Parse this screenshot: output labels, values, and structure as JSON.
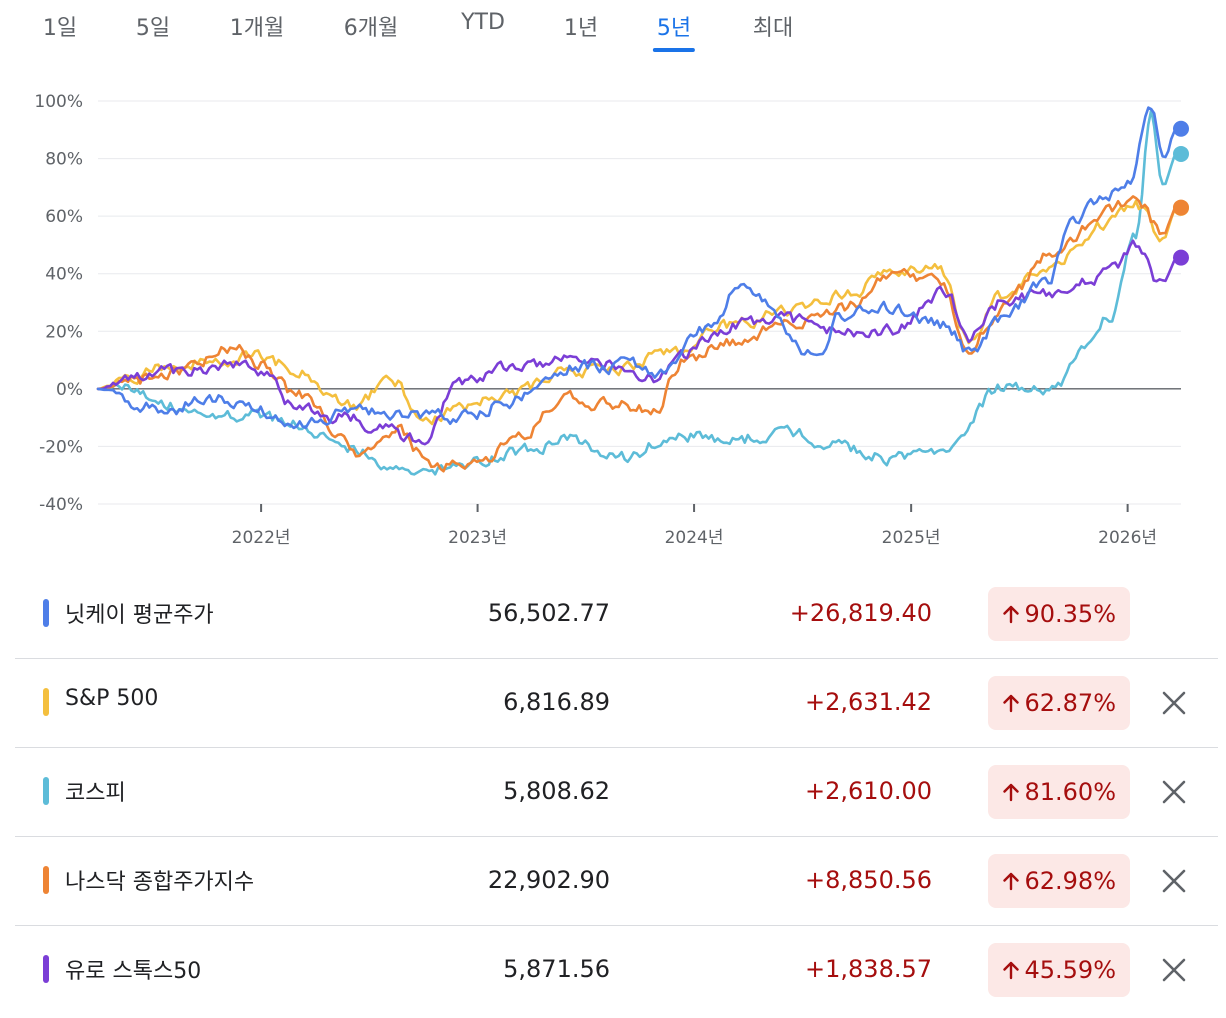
{
  "tabs": [
    {
      "label": "1일",
      "active": false
    },
    {
      "label": "5일",
      "active": false
    },
    {
      "label": "1개월",
      "active": false
    },
    {
      "label": "6개월",
      "active": false
    },
    {
      "label": "YTD",
      "active": false
    },
    {
      "label": "1년",
      "active": false
    },
    {
      "label": "5년",
      "active": true
    },
    {
      "label": "최대",
      "active": false
    }
  ],
  "colors": {
    "nikkei": "#4e7ee8",
    "sp500": "#f4bf3e",
    "kospi": "#5dbcd8",
    "nasdaq": "#ee8434",
    "stoxx": "#7b3ed6",
    "positive": "#a50e0e",
    "positive_bg": "#fce8e6"
  },
  "chart_data": {
    "type": "line",
    "x_unit": "date",
    "x_range": [
      "2021-04-01",
      "2026-04-01"
    ],
    "ylim": [
      -40,
      100
    ],
    "y_ticks": [
      -40,
      -20,
      0,
      20,
      40,
      60,
      80,
      100
    ],
    "y_tick_labels": [
      "-40%",
      "-20%",
      "0%",
      "20%",
      "40%",
      "60%",
      "80%",
      "100%"
    ],
    "x_ticks": [
      "2022-01-01",
      "2023-01-01",
      "2024-01-01",
      "2025-01-01",
      "2026-01-01"
    ],
    "x_tick_labels": [
      "2022년",
      "2023년",
      "2024년",
      "2025년",
      "2026년"
    ],
    "baseline": 0,
    "grid": true,
    "series": [
      {
        "key": "kospi",
        "name": "코스피",
        "end": 81.6,
        "x": [
          "2021-04-01",
          "2021-06-01",
          "2021-08-01",
          "2021-10-01",
          "2021-12-01",
          "2022-03-01",
          "2022-06-01",
          "2022-09-01",
          "2022-12-01",
          "2023-03-01",
          "2023-06-01",
          "2023-09-01",
          "2023-12-01",
          "2024-03-01",
          "2024-06-01",
          "2024-09-01",
          "2024-12-01",
          "2025-03-01",
          "2025-06-01",
          "2025-09-01",
          "2025-10-15",
          "2025-12-01",
          "2026-01-15",
          "2026-02-10",
          "2026-03-01",
          "2026-03-25"
        ],
        "y": [
          0,
          1,
          -6,
          -10,
          -9,
          -12,
          -20,
          -30,
          -26,
          -22,
          -18,
          -24,
          -16,
          -18,
          -15,
          -20,
          -24,
          -20,
          0,
          1,
          14,
          25,
          52,
          95,
          70,
          81.6
        ]
      },
      {
        "key": "sp500",
        "name": "S&P 500",
        "end": 62.87,
        "x": [
          "2021-04-01",
          "2021-06-01",
          "2021-08-01",
          "2021-10-01",
          "2022-01-01",
          "2022-03-01",
          "2022-06-01",
          "2022-08-15",
          "2022-10-01",
          "2022-12-01",
          "2023-03-01",
          "2023-06-01",
          "2023-09-01",
          "2023-12-01",
          "2024-03-01",
          "2024-06-01",
          "2024-09-01",
          "2024-12-01",
          "2025-02-15",
          "2025-04-08",
          "2025-06-01",
          "2025-09-01",
          "2025-12-01",
          "2026-01-15",
          "2026-03-01",
          "2026-03-25"
        ],
        "y": [
          0,
          4,
          8,
          10,
          12,
          6,
          -6,
          3,
          -12,
          -6,
          -2,
          6,
          6,
          14,
          22,
          26,
          32,
          40,
          42,
          18,
          32,
          44,
          58,
          64,
          52,
          62.87
        ]
      },
      {
        "key": "nasdaq",
        "name": "나스닥 종합주가지수",
        "end": 62.98,
        "x": [
          "2021-04-01",
          "2021-06-01",
          "2021-08-01",
          "2021-11-15",
          "2022-01-01",
          "2022-03-01",
          "2022-06-15",
          "2022-08-15",
          "2022-10-15",
          "2022-12-31",
          "2023-03-01",
          "2023-06-01",
          "2023-09-01",
          "2023-10-25",
          "2023-12-15",
          "2024-03-01",
          "2024-06-01",
          "2024-09-01",
          "2024-12-15",
          "2025-02-15",
          "2025-04-08",
          "2025-06-01",
          "2025-09-01",
          "2025-12-01",
          "2026-01-15",
          "2026-03-01",
          "2026-03-25"
        ],
        "y": [
          0,
          3,
          6,
          14,
          8,
          -2,
          -22,
          -14,
          -26,
          -26,
          -18,
          -4,
          -6,
          -8,
          10,
          16,
          22,
          28,
          40,
          38,
          14,
          28,
          48,
          62,
          66,
          54,
          62.98
        ]
      },
      {
        "key": "stoxx",
        "name": "유로 스톡스50",
        "end": 45.59,
        "x": [
          "2021-04-01",
          "2021-06-01",
          "2021-08-01",
          "2021-11-15",
          "2022-01-01",
          "2022-03-07",
          "2022-06-01",
          "2022-07-15",
          "2022-09-29",
          "2022-12-01",
          "2023-03-01",
          "2023-06-01",
          "2023-09-01",
          "2023-10-25",
          "2023-12-15",
          "2024-03-01",
          "2024-06-01",
          "2024-09-01",
          "2024-12-01",
          "2025-03-01",
          "2025-04-08",
          "2025-06-01",
          "2025-09-01",
          "2025-12-01",
          "2026-01-15",
          "2026-03-01",
          "2026-03-25"
        ],
        "y": [
          0,
          4,
          6,
          8,
          6,
          -8,
          -10,
          -14,
          -18,
          2,
          8,
          10,
          8,
          4,
          12,
          22,
          24,
          20,
          20,
          34,
          18,
          30,
          34,
          40,
          50,
          36,
          45.59
        ]
      },
      {
        "key": "nikkei",
        "name": "닛케이 평균주가",
        "end": 90.35,
        "x": [
          "2021-04-01",
          "2021-06-01",
          "2021-08-01",
          "2021-10-01",
          "2021-12-01",
          "2022-03-07",
          "2022-06-01",
          "2022-09-01",
          "2022-12-01",
          "2023-03-01",
          "2023-06-15",
          "2023-09-15",
          "2023-11-01",
          "2024-01-15",
          "2024-03-25",
          "2024-08-05",
          "2024-09-01",
          "2024-12-01",
          "2025-03-01",
          "2025-04-08",
          "2025-06-01",
          "2025-08-15",
          "2025-10-01",
          "2025-11-15",
          "2026-01-01",
          "2026-02-10",
          "2026-03-01",
          "2026-03-25"
        ],
        "y": [
          0,
          -5,
          -7,
          -3,
          -5,
          -13,
          -8,
          -8,
          -10,
          -4,
          8,
          8,
          4,
          20,
          36,
          10,
          26,
          28,
          22,
          12,
          24,
          36,
          58,
          66,
          72,
          96,
          80,
          90.35
        ]
      }
    ]
  },
  "table": {
    "rows": [
      {
        "key": "nikkei",
        "name": "닛케이 평균주가",
        "price": "56,502.77",
        "change": "+26,819.40",
        "percent": "90.35%",
        "removable": false
      },
      {
        "key": "sp500",
        "name": "S&P 500",
        "price": "6,816.89",
        "change": "+2,631.42",
        "percent": "62.87%",
        "removable": true
      },
      {
        "key": "kospi",
        "name": "코스피",
        "price": "5,808.62",
        "change": "+2,610.00",
        "percent": "81.60%",
        "removable": true
      },
      {
        "key": "nasdaq",
        "name": "나스닥 종합주가지수",
        "price": "22,902.90",
        "change": "+8,850.56",
        "percent": "62.98%",
        "removable": true
      },
      {
        "key": "stoxx",
        "name": "유로 스톡스50",
        "price": "5,871.56",
        "change": "+1,838.57",
        "percent": "45.59%",
        "removable": true
      }
    ]
  },
  "icons": {
    "arrow": "arrow-up-icon",
    "remove": "close-icon"
  }
}
